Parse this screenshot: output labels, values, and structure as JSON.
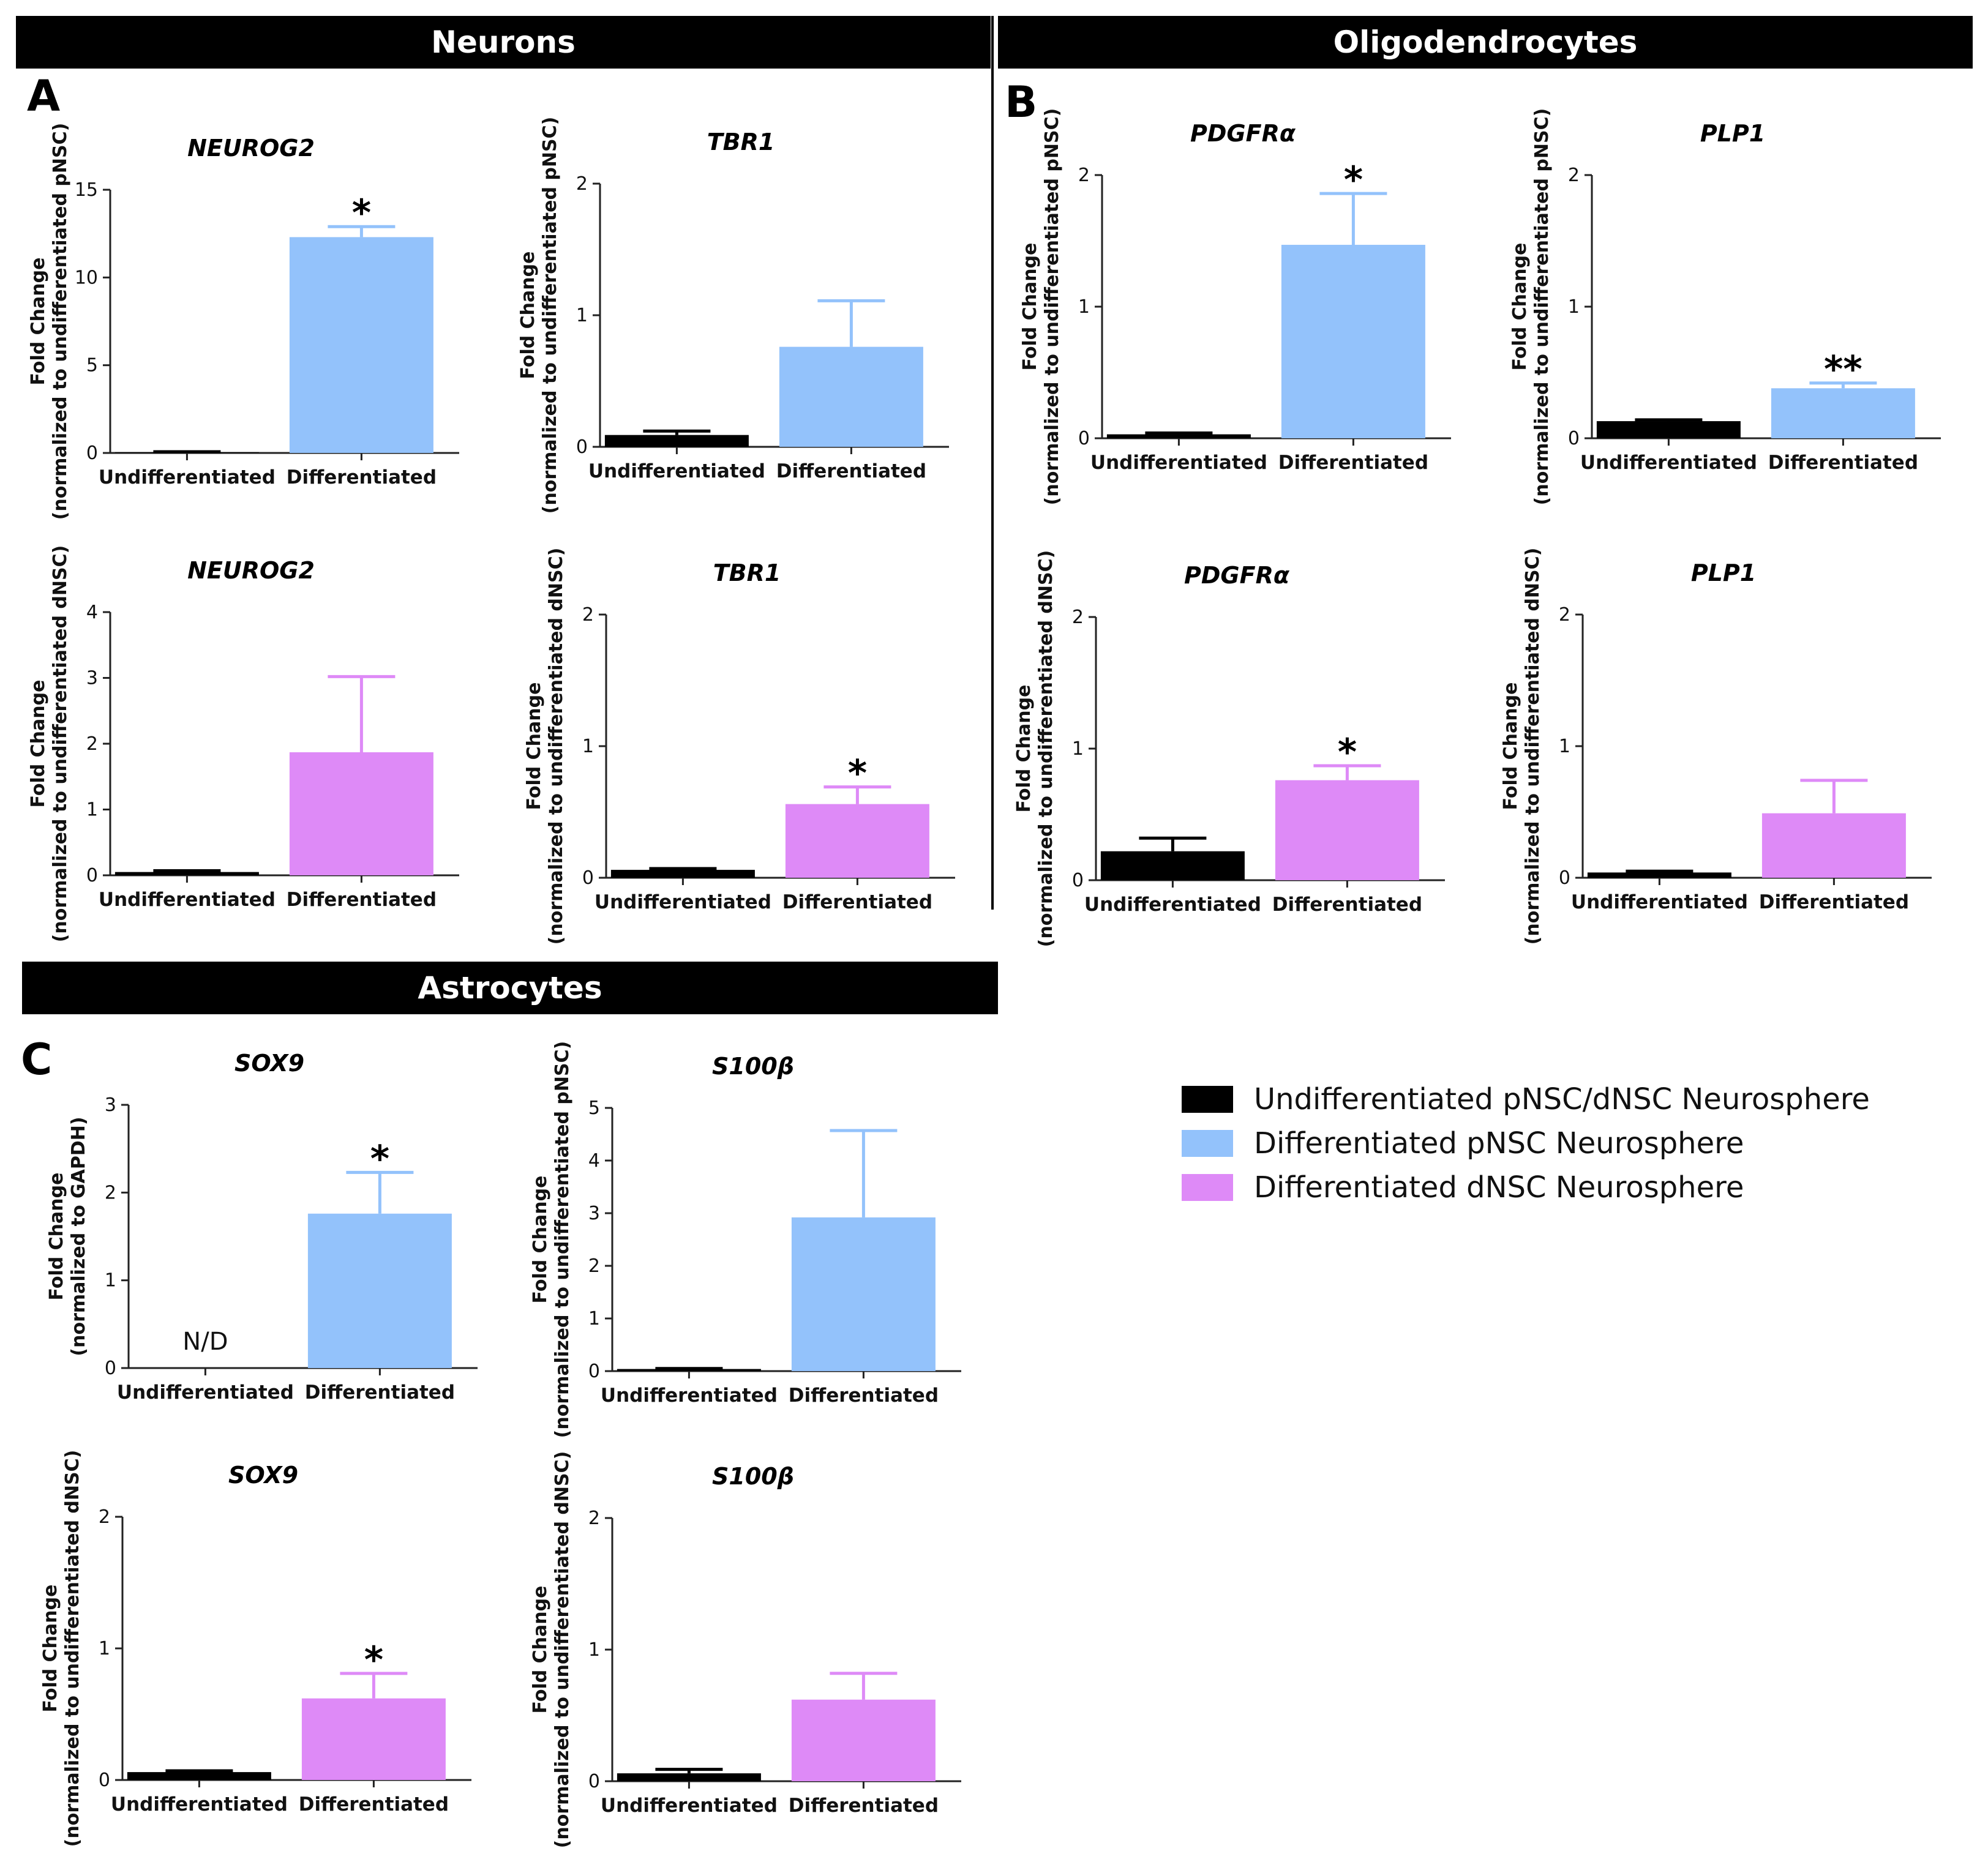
{
  "colors": {
    "undiff": "#000000",
    "pnsc": "#93c2fb",
    "dnsc": "#de8af7",
    "axis": "#222222"
  },
  "banners": {
    "neurons": "Neurons",
    "oligo": "Oligodendrocytes",
    "astro": "Astrocytes"
  },
  "panels": {
    "a": "A",
    "b": "B",
    "c": "C"
  },
  "legend": [
    {
      "label": "Undifferentiated pNSC/dNSC Neurosphere",
      "color": "#000000"
    },
    {
      "label": "Differentiated pNSC Neurosphere",
      "color": "#93c2fb"
    },
    {
      "label": "Differentiated dNSC Neurosphere",
      "color": "#de8af7"
    }
  ],
  "chart_data": [
    {
      "type": "bar",
      "title": "NEUROG2",
      "ylabel_line1": "Fold Change",
      "ylabel_line2": "(normalized to undifferentiated pNSC)",
      "categories": [
        "Undifferentiated",
        "Differentiated"
      ],
      "values": [
        0.05,
        12.3
      ],
      "errors": [
        0.02,
        0.6
      ],
      "colors": [
        "#000000",
        "#93c2fb"
      ],
      "ylim": [
        0,
        15
      ],
      "yticks": [
        0,
        5,
        10,
        15
      ],
      "annotations": [
        "",
        "*"
      ]
    },
    {
      "type": "bar",
      "title": "TBR1",
      "ylabel_line1": "Fold Change",
      "ylabel_line2": "(normalized to undifferentiated pNSC)",
      "categories": [
        "Undifferentiated",
        "Differentiated"
      ],
      "values": [
        0.09,
        0.76
      ],
      "errors": [
        0.03,
        0.35
      ],
      "colors": [
        "#000000",
        "#93c2fb"
      ],
      "ylim": [
        0,
        2
      ],
      "yticks": [
        0,
        1,
        2
      ],
      "annotations": [
        "",
        ""
      ]
    },
    {
      "type": "bar",
      "title": "PDGFRα",
      "ylabel_line1": "Fold Change",
      "ylabel_line2": "(normalized to undifferentiated pNSC)",
      "categories": [
        "Undifferentiated",
        "Differentiated"
      ],
      "values": [
        0.03,
        1.47
      ],
      "errors": [
        0.01,
        0.39
      ],
      "colors": [
        "#000000",
        "#93c2fb"
      ],
      "ylim": [
        0,
        2
      ],
      "yticks": [
        0,
        1,
        2
      ],
      "annotations": [
        "",
        "*"
      ]
    },
    {
      "type": "bar",
      "title": "PLP1",
      "ylabel_line1": "Fold Change",
      "ylabel_line2": "(normalized to undifferentiated pNSC)",
      "categories": [
        "Undifferentiated",
        "Differentiated"
      ],
      "values": [
        0.13,
        0.38
      ],
      "errors": [
        0.01,
        0.04
      ],
      "colors": [
        "#000000",
        "#93c2fb"
      ],
      "ylim": [
        0,
        2
      ],
      "yticks": [
        0,
        1,
        2
      ],
      "annotations": [
        "",
        "**"
      ]
    },
    {
      "type": "bar",
      "title": "NEUROG2",
      "ylabel_line1": "Fold Change",
      "ylabel_line2": "(normalized to undifferentiated dNSC)",
      "categories": [
        "Undifferentiated",
        "Differentiated"
      ],
      "values": [
        0.05,
        1.87
      ],
      "errors": [
        0.02,
        1.15
      ],
      "colors": [
        "#000000",
        "#de8af7"
      ],
      "ylim": [
        0,
        4
      ],
      "yticks": [
        0,
        1,
        2,
        3,
        4
      ],
      "annotations": [
        "",
        ""
      ]
    },
    {
      "type": "bar",
      "title": "TBR1",
      "ylabel_line1": "Fold Change",
      "ylabel_line2": "(normalized to undifferentiated dNSC)",
      "categories": [
        "Undifferentiated",
        "Differentiated"
      ],
      "values": [
        0.06,
        0.56
      ],
      "errors": [
        0.01,
        0.13
      ],
      "colors": [
        "#000000",
        "#de8af7"
      ],
      "ylim": [
        0,
        2
      ],
      "yticks": [
        0,
        1,
        2
      ],
      "annotations": [
        "",
        "*"
      ]
    },
    {
      "type": "bar",
      "title": "PDGFRα",
      "ylabel_line1": "Fold Change",
      "ylabel_line2": "(normalized to undifferentiated dNSC)",
      "categories": [
        "Undifferentiated",
        "Differentiated"
      ],
      "values": [
        0.22,
        0.76
      ],
      "errors": [
        0.1,
        0.11
      ],
      "colors": [
        "#000000",
        "#de8af7"
      ],
      "ylim": [
        0,
        2
      ],
      "yticks": [
        0,
        1,
        2
      ],
      "annotations": [
        "",
        "*"
      ]
    },
    {
      "type": "bar",
      "title": "PLP1",
      "ylabel_line1": "Fold Change",
      "ylabel_line2": "(normalized to undifferentiated dNSC)",
      "categories": [
        "Undifferentiated",
        "Differentiated"
      ],
      "values": [
        0.04,
        0.49
      ],
      "errors": [
        0.01,
        0.25
      ],
      "colors": [
        "#000000",
        "#de8af7"
      ],
      "ylim": [
        0,
        2
      ],
      "yticks": [
        0,
        1,
        2
      ],
      "annotations": [
        "",
        ""
      ]
    },
    {
      "type": "bar",
      "title": "SOX9",
      "ylabel_line1": "Fold Change",
      "ylabel_line2": "(normalized to GAPDH)",
      "categories": [
        "Undifferentiated",
        "Differentiated"
      ],
      "values": [
        0,
        1.76
      ],
      "errors": [
        0,
        0.47
      ],
      "colors": [
        "#000000",
        "#93c2fb"
      ],
      "ylim": [
        0,
        3
      ],
      "yticks": [
        0,
        1,
        2,
        3
      ],
      "annotations": [
        "",
        "*"
      ],
      "not_detected": "N/D"
    },
    {
      "type": "bar",
      "title": "S100β",
      "ylabel_line1": "Fold Change",
      "ylabel_line2": "(normalized to undifferentiated pNSC)",
      "categories": [
        "Undifferentiated",
        "Differentiated"
      ],
      "values": [
        0.04,
        2.92
      ],
      "errors": [
        0.01,
        1.65
      ],
      "colors": [
        "#000000",
        "#93c2fb"
      ],
      "ylim": [
        0,
        5
      ],
      "yticks": [
        0,
        1,
        2,
        3,
        4,
        5
      ],
      "annotations": [
        "",
        ""
      ]
    },
    {
      "type": "bar",
      "title": "SOX9",
      "ylabel_line1": "Fold Change",
      "ylabel_line2": "(normalized to undifferentiated dNSC)",
      "categories": [
        "Undifferentiated",
        "Differentiated"
      ],
      "values": [
        0.06,
        0.62
      ],
      "errors": [
        0.01,
        0.19
      ],
      "colors": [
        "#000000",
        "#de8af7"
      ],
      "ylim": [
        0,
        2
      ],
      "yticks": [
        0,
        1,
        2
      ],
      "annotations": [
        "",
        "*"
      ]
    },
    {
      "type": "bar",
      "title": "S100β",
      "ylabel_line1": "Fold Change",
      "ylabel_line2": "(normalized to undifferentiated dNSC)",
      "categories": [
        "Undifferentiated",
        "Differentiated"
      ],
      "values": [
        0.06,
        0.62
      ],
      "errors": [
        0.03,
        0.2
      ],
      "colors": [
        "#000000",
        "#de8af7"
      ],
      "ylim": [
        0,
        2
      ],
      "yticks": [
        0,
        1,
        2
      ],
      "annotations": [
        "",
        ""
      ]
    }
  ]
}
